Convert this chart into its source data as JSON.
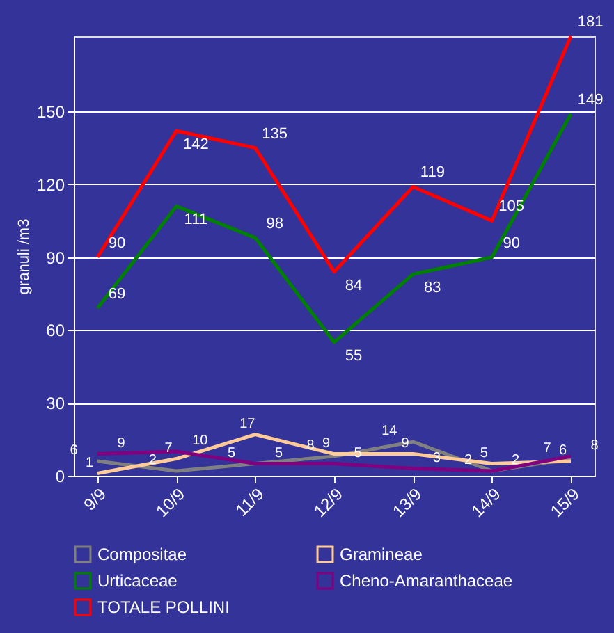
{
  "chart_data": {
    "type": "line",
    "ylabel": "granuli /m3",
    "categories": [
      "9/9",
      "10/9",
      "11/9",
      "12/9",
      "13/9",
      "14/9",
      "15/9"
    ],
    "series": [
      {
        "name": "Compositae",
        "color": "#808080",
        "values": [
          6,
          2,
          5,
          8,
          14,
          2,
          7
        ]
      },
      {
        "name": "Gramineae",
        "color": "#ffcc99",
        "values": [
          1,
          7,
          17,
          9,
          9,
          5,
          6
        ]
      },
      {
        "name": "Urticaceae",
        "color": "#008000",
        "values": [
          69,
          111,
          98,
          55,
          83,
          90,
          149
        ]
      },
      {
        "name": "Cheno-Amaranthaceae",
        "color": "#800080",
        "values": [
          9,
          10,
          5,
          5,
          3,
          2,
          8
        ]
      },
      {
        "name": "TOTALE POLLINI",
        "color": "#ff0000",
        "values": [
          90,
          142,
          135,
          84,
          119,
          105,
          181
        ]
      }
    ],
    "ylim": [
      0,
      181
    ],
    "yticks": [
      0,
      30,
      60,
      90,
      120,
      150
    ],
    "grid": "y",
    "legend": "bottom",
    "data_labels": true,
    "marker": "none",
    "line_style": "solid"
  }
}
